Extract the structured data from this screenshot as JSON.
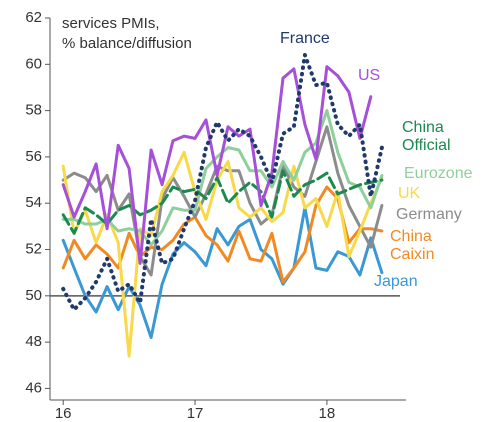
{
  "chart_data": {
    "type": "line",
    "annotation": "services PMIs,\n% balance/diffusion",
    "x": [
      16,
      16.083,
      16.167,
      16.25,
      16.333,
      16.417,
      16.5,
      16.583,
      16.667,
      16.75,
      16.833,
      16.917,
      17,
      17.083,
      17.167,
      17.25,
      17.333,
      17.417,
      17.5,
      17.583,
      17.667,
      17.75,
      17.833,
      17.917,
      18,
      18.083,
      18.167,
      18.25,
      18.333,
      18.417
    ],
    "xlim": [
      15.9,
      18.6
    ],
    "xticks": [
      16,
      17,
      18
    ],
    "ylim": [
      45.5,
      62
    ],
    "yticks": [
      46,
      48,
      50,
      52,
      54,
      56,
      58,
      60,
      62
    ],
    "reference_line": 50,
    "series": [
      {
        "name": "Japan",
        "color": "#3a98d4",
        "dash": "solid",
        "values": [
          52.4,
          51.2,
          50.0,
          49.3,
          50.4,
          49.4,
          50.4,
          49.6,
          48.2,
          50.5,
          51.8,
          52.3,
          51.9,
          51.3,
          52.9,
          52.2,
          53.0,
          53.3,
          52.0,
          51.6,
          50.5,
          51.2,
          53.8,
          51.2,
          51.1,
          51.9,
          51.7,
          50.9,
          52.5,
          51.0
        ]
      },
      {
        "name": "China Caixin",
        "color": "#f28a24",
        "dash": "solid",
        "values": [
          51.2,
          52.4,
          51.6,
          52.2,
          51.8,
          51.2,
          52.7,
          51.7,
          52.1,
          52.0,
          52.4,
          53.1,
          53.4,
          52.6,
          52.2,
          51.5,
          52.8,
          51.6,
          51.5,
          52.7,
          50.6,
          51.2,
          51.9,
          53.9,
          54.7,
          54.2,
          52.3,
          52.9,
          52.9,
          52.8
        ]
      },
      {
        "name": "Germany",
        "color": "#8c8c8c",
        "dash": "solid",
        "values": [
          55.0,
          55.3,
          55.1,
          54.5,
          55.2,
          53.7,
          54.4,
          51.7,
          50.9,
          54.2,
          55.1,
          54.3,
          53.4,
          54.4,
          55.6,
          55.4,
          55.4,
          54.0,
          53.1,
          53.5,
          55.6,
          54.7,
          54.3,
          55.8,
          57.3,
          55.3,
          53.9,
          53.0,
          52.1,
          53.9
        ]
      },
      {
        "name": "UK",
        "color": "#f7d94a",
        "dash": "solid",
        "values": [
          55.6,
          52.7,
          53.7,
          52.3,
          53.5,
          52.3,
          47.4,
          52.9,
          52.6,
          54.5,
          55.2,
          56.2,
          54.5,
          53.3,
          55.0,
          55.8,
          53.8,
          53.4,
          53.8,
          53.2,
          53.6,
          55.6,
          53.8,
          54.2,
          53.0,
          54.5,
          51.7,
          52.8,
          54.0,
          55.1
        ]
      },
      {
        "name": "Eurozone",
        "color": "#8ecf9b",
        "dash": "solid",
        "values": [
          53.3,
          53.3,
          53.1,
          53.1,
          53.3,
          52.8,
          52.9,
          52.8,
          52.2,
          52.8,
          53.8,
          53.7,
          53.7,
          55.5,
          56.0,
          56.4,
          56.3,
          55.4,
          55.4,
          54.7,
          55.8,
          55.0,
          56.2,
          56.6,
          58.0,
          56.2,
          54.9,
          54.7,
          53.8,
          55.2
        ]
      },
      {
        "name": "China Official",
        "color": "#1b8a4f",
        "dash": "dashed",
        "values": [
          53.5,
          52.7,
          53.8,
          53.5,
          53.1,
          53.7,
          53.9,
          53.5,
          53.7,
          54.0,
          54.7,
          54.5,
          54.6,
          54.2,
          55.1,
          54.0,
          54.5,
          54.9,
          54.5,
          53.4,
          55.4,
          54.3,
          54.8,
          55.0,
          55.3,
          54.4,
          54.6,
          54.8,
          54.9,
          55.0
        ]
      },
      {
        "name": "US",
        "color": "#a64fd8",
        "dash": "solid",
        "values": [
          54.8,
          53.4,
          54.5,
          55.7,
          52.9,
          56.5,
          55.5,
          51.4,
          56.3,
          54.8,
          56.7,
          56.9,
          56.8,
          57.6,
          55.2,
          57.3,
          56.9,
          57.2,
          53.9,
          55.3,
          59.4,
          59.8,
          57.4,
          55.9,
          59.9,
          59.5,
          58.8,
          56.8,
          58.6,
          null
        ]
      },
      {
        "name": "France",
        "color": "#1f3a6b",
        "dash": "dotted",
        "values": [
          50.3,
          49.4,
          49.9,
          50.6,
          51.6,
          50.2,
          50.5,
          49.7,
          53.3,
          51.4,
          51.6,
          52.9,
          54.1,
          56.4,
          57.5,
          56.7,
          57.2,
          56.9,
          56.0,
          54.9,
          57.0,
          57.3,
          60.4,
          59.1,
          59.2,
          57.4,
          56.9,
          57.4,
          54.3,
          56.4
        ]
      }
    ]
  }
}
